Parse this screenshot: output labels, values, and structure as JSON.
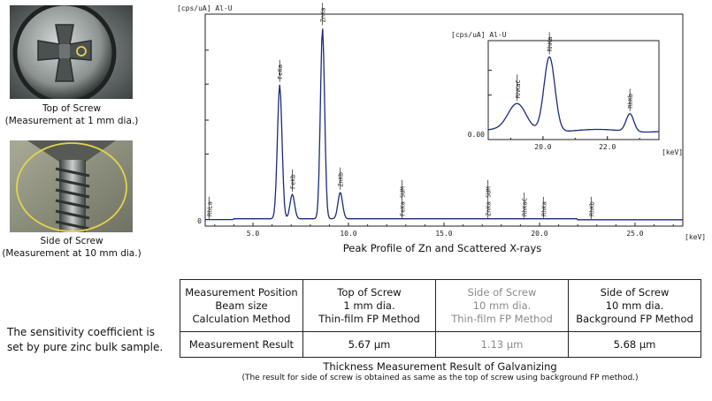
{
  "photos": {
    "top": {
      "caption_line1": "Top of Screw",
      "caption_line2": "(Measurement at 1 mm dia.)"
    },
    "side": {
      "caption_line1": "Side of Screw",
      "caption_line2": "(Measurement at 10 mm dia.)"
    }
  },
  "chart_data": [
    {
      "type": "line",
      "unit_label": "[cps/uA] Al-U",
      "xlabel": "[keV]",
      "x_ticks": [
        "5.0",
        "10.0",
        "15.0",
        "20.0",
        "25.0"
      ],
      "y_ticks": [
        "0"
      ],
      "xlim": [
        2.5,
        27.5
      ],
      "ylim": [
        0,
        100
      ],
      "grid": false,
      "peaks": [
        {
          "label": "RhLa",
          "x": 2.7,
          "y": 0
        },
        {
          "label": "FeKa",
          "x": 6.4,
          "y": 66
        },
        {
          "label": "FeKb",
          "x": 7.06,
          "y": 12
        },
        {
          "label": "ZnKa",
          "x": 8.64,
          "y": 94
        },
        {
          "label": "ZnKb",
          "x": 9.57,
          "y": 13
        },
        {
          "label": "FeKa SUM",
          "x": 12.8,
          "y": 0
        },
        {
          "label": "ZnKa SUM",
          "x": 17.3,
          "y": 0
        },
        {
          "label": "RhKaC",
          "x": 19.2,
          "y": 0
        },
        {
          "label": "RhKa",
          "x": 20.2,
          "y": 0
        },
        {
          "label": "RhKb",
          "x": 22.7,
          "y": 0
        }
      ],
      "title": "Peak Profile of Zn and Scattered X-rays"
    },
    {
      "type": "line",
      "unit_label": "[cps/uA] Al-U",
      "xlabel": "[keV]",
      "x_ticks": [
        "20.0",
        "22.0"
      ],
      "y_ticks": [
        "0.00"
      ],
      "xlim": [
        18.3,
        23.6
      ],
      "ylim": [
        0,
        100
      ],
      "grid": false,
      "peaks": [
        {
          "label": "RhKaC",
          "x": 19.2,
          "y": 30
        },
        {
          "label": "RhKa",
          "x": 20.2,
          "y": 85
        },
        {
          "label": "RhKb",
          "x": 22.7,
          "y": 20
        }
      ]
    }
  ],
  "sensitivity_note": {
    "line1": "The sensitivity coefficient is",
    "line2": "set by pure zinc bulk sample."
  },
  "table": {
    "row_header": {
      "line1": "Measurement Position",
      "line2": "Beam size",
      "line3": "Calculation Method"
    },
    "row_result_label": "Measurement Result",
    "columns": [
      {
        "line1": "Top of Screw",
        "line2": "1 mm dia.",
        "line3": "Thin-film FP Method",
        "result": "5.67 μm",
        "dim": false
      },
      {
        "line1": "Side of Screw",
        "line2": "10 mm dia.",
        "line3": "Thin-film FP Method",
        "result": "1.13 μm",
        "dim": true
      },
      {
        "line1": "Side of Screw",
        "line2": "10 mm dia.",
        "line3": "Background FP Method",
        "result": "5.68 μm",
        "dim": false
      }
    ],
    "caption": "Thickness Measurement Result of Galvanizing",
    "note": "(The result for side of screw is obtained as same as the top of screw using background FP method.)"
  },
  "colors": {
    "curve": "#1a2a7a",
    "axis": "#222222",
    "dim_text": "#8a8a8a",
    "ring": "#e6d44a"
  }
}
